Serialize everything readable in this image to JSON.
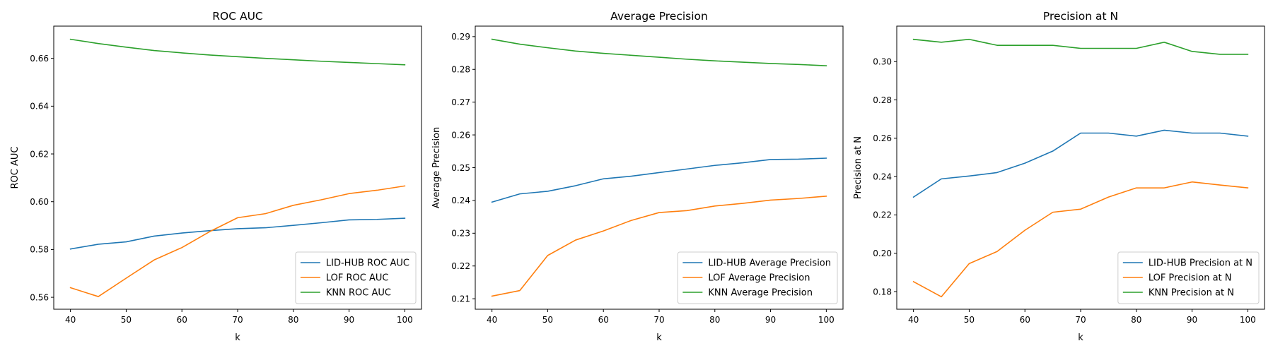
{
  "chart_data": [
    {
      "type": "line",
      "title": "ROC AUC",
      "xlabel": "k",
      "ylabel": "ROC AUC",
      "x": [
        40,
        45,
        50,
        55,
        60,
        65,
        70,
        75,
        80,
        85,
        90,
        95,
        100
      ],
      "xlim": [
        37,
        103
      ],
      "ylim": [
        0.555,
        0.6735
      ],
      "xticks": [
        40,
        50,
        60,
        70,
        80,
        90,
        100
      ],
      "yticks": [
        0.56,
        0.58,
        0.6,
        0.62,
        0.64,
        0.66
      ],
      "ytick_format": 2,
      "legend_position": "lower-right",
      "series": [
        {
          "name": "LID-HUB ROC AUC",
          "color": "#1f77b4",
          "values": [
            0.5802,
            0.5822,
            0.5832,
            0.5856,
            0.5869,
            0.5879,
            0.5887,
            0.5891,
            0.5901,
            0.5912,
            0.5924,
            0.5926,
            0.5931
          ]
        },
        {
          "name": "LOF ROC AUC",
          "color": "#ff7f0e",
          "values": [
            0.564,
            0.5603,
            0.568,
            0.5756,
            0.5808,
            0.5875,
            0.5933,
            0.595,
            0.5985,
            0.6008,
            0.6034,
            0.6048,
            0.6066
          ]
        },
        {
          "name": "KNN ROC AUC",
          "color": "#2ca02c",
          "values": [
            0.668,
            0.6662,
            0.6647,
            0.6633,
            0.6623,
            0.6614,
            0.6607,
            0.66,
            0.6594,
            0.6588,
            0.6583,
            0.6578,
            0.6573
          ]
        }
      ]
    },
    {
      "type": "line",
      "title": "Average Precision",
      "xlabel": "k",
      "ylabel": "Average Precision",
      "x": [
        40,
        45,
        50,
        55,
        60,
        65,
        70,
        75,
        80,
        85,
        90,
        95,
        100
      ],
      "xlim": [
        37,
        103
      ],
      "ylim": [
        0.2068,
        0.2932
      ],
      "xticks": [
        40,
        50,
        60,
        70,
        80,
        90,
        100
      ],
      "yticks": [
        0.21,
        0.22,
        0.23,
        0.24,
        0.25,
        0.26,
        0.27,
        0.28,
        0.29
      ],
      "ytick_format": 2,
      "legend_position": "lower-right",
      "series": [
        {
          "name": "LID-HUB Average Precision",
          "color": "#1f77b4",
          "values": [
            0.2395,
            0.242,
            0.2428,
            0.2445,
            0.2466,
            0.2474,
            0.2485,
            0.2496,
            0.2507,
            0.2515,
            0.2525,
            0.2526,
            0.2529
          ]
        },
        {
          "name": "LOF Average Precision",
          "color": "#ff7f0e",
          "values": [
            0.2108,
            0.2125,
            0.2232,
            0.2279,
            0.2307,
            0.2339,
            0.2363,
            0.2369,
            0.2383,
            0.2391,
            0.2401,
            0.2406,
            0.2413
          ]
        },
        {
          "name": "KNN Average Precision",
          "color": "#2ca02c",
          "values": [
            0.2892,
            0.2877,
            0.2866,
            0.2856,
            0.2849,
            0.2843,
            0.2837,
            0.2831,
            0.2826,
            0.2822,
            0.2818,
            0.2815,
            0.2811
          ]
        }
      ]
    },
    {
      "type": "line",
      "title": "Precision at N",
      "xlabel": "k",
      "ylabel": "Precision at N",
      "x": [
        40,
        45,
        50,
        55,
        60,
        65,
        70,
        75,
        80,
        85,
        90,
        95,
        100
      ],
      "xlim": [
        37,
        103
      ],
      "ylim": [
        0.1708,
        0.3185
      ],
      "xticks": [
        40,
        50,
        60,
        70,
        80,
        90,
        100
      ],
      "yticks": [
        0.18,
        0.2,
        0.22,
        0.24,
        0.26,
        0.28,
        0.3
      ],
      "ytick_format": 2,
      "legend_position": "lower-right",
      "series": [
        {
          "name": "LID-HUB Precision at N",
          "color": "#1f77b4",
          "values": [
            0.2293,
            0.2388,
            0.2403,
            0.2421,
            0.247,
            0.2533,
            0.2627,
            0.2627,
            0.2611,
            0.2642,
            0.2627,
            0.2627,
            0.2611
          ]
        },
        {
          "name": "LOF Precision at N",
          "color": "#ff7f0e",
          "values": [
            0.1852,
            0.1773,
            0.1946,
            0.2009,
            0.212,
            0.2214,
            0.223,
            0.2293,
            0.2341,
            0.2341,
            0.2372,
            0.2356,
            0.2341
          ]
        },
        {
          "name": "KNN Precision at N",
          "color": "#2ca02c",
          "values": [
            0.3116,
            0.3101,
            0.3116,
            0.3085,
            0.3085,
            0.3085,
            0.3069,
            0.3069,
            0.3069,
            0.3101,
            0.3053,
            0.3038,
            0.3038
          ]
        }
      ]
    }
  ]
}
